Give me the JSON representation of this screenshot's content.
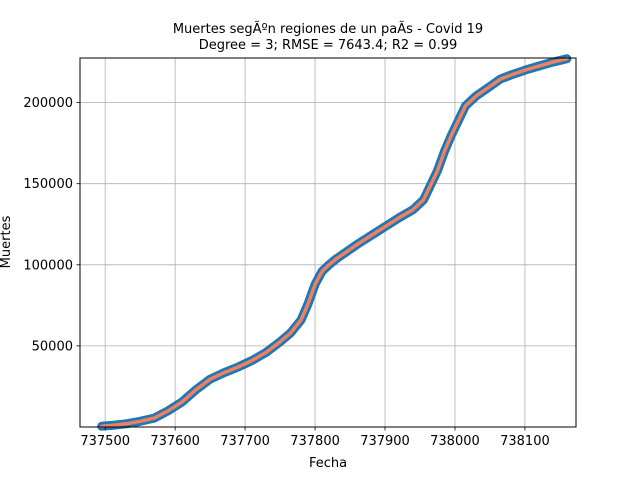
{
  "chart_data": {
    "type": "line",
    "title_line1": "Muertes segÃºn regiones de un paÃ­s - Covid 19",
    "title_line2": "Degree = 3; RMSE = 7643.4; R2 = 0.99",
    "xlabel": "Fecha",
    "ylabel": "Muertes",
    "xlim": [
      737464,
      738173
    ],
    "ylim": [
      0,
      227500
    ],
    "xticks": [
      737500,
      737600,
      737700,
      737800,
      737900,
      738000,
      738100
    ],
    "xtick_labels": [
      "737500",
      "737600",
      "737700",
      "737800",
      "737900",
      "738000",
      "738100"
    ],
    "yticks": [
      50000,
      100000,
      150000,
      200000
    ],
    "ytick_labels": [
      "50000",
      "100000",
      "150000",
      "200000"
    ],
    "grid": true,
    "legend": "none",
    "series": [
      {
        "color": "#1f77b4",
        "style": "thick-line",
        "x": [
          737495,
          737510,
          737530,
          737550,
          737570,
          737590,
          737610,
          737630,
          737650,
          737670,
          737690,
          737710,
          737730,
          737750,
          737765,
          737780,
          737790,
          737800,
          737810,
          737820,
          737830,
          737845,
          737860,
          737880,
          737900,
          737920,
          737940,
          737955,
          737965,
          737975,
          737985,
          737995,
          738005,
          738015,
          738030,
          738050,
          738065,
          738080,
          738100,
          738120,
          738140,
          738160
        ],
        "y": [
          500,
          1000,
          2000,
          3500,
          5500,
          10000,
          15500,
          23000,
          29500,
          33500,
          37000,
          41000,
          46000,
          52500,
          58000,
          66000,
          76000,
          88000,
          96000,
          100000,
          103500,
          108000,
          112500,
          118000,
          123500,
          129000,
          134000,
          140000,
          149000,
          158000,
          170000,
          180000,
          189000,
          198000,
          204000,
          210000,
          214500,
          217000,
          220000,
          222500,
          225000,
          227000
        ]
      },
      {
        "color": "#f08060",
        "style": "thin-line",
        "x": [
          737495,
          737510,
          737530,
          737550,
          737570,
          737590,
          737610,
          737630,
          737650,
          737670,
          737690,
          737710,
          737730,
          737750,
          737765,
          737780,
          737790,
          737800,
          737810,
          737820,
          737830,
          737845,
          737860,
          737880,
          737900,
          737920,
          737940,
          737955,
          737965,
          737975,
          737985,
          737995,
          738005,
          738015,
          738030,
          738050,
          738065,
          738080,
          738100,
          738120,
          738140,
          738160
        ],
        "y": [
          500,
          1000,
          2000,
          3500,
          5500,
          10000,
          15500,
          23000,
          29500,
          33500,
          37000,
          41000,
          46000,
          52500,
          58000,
          66000,
          76000,
          88000,
          96000,
          100000,
          103500,
          108000,
          112500,
          118000,
          123500,
          129000,
          134000,
          140000,
          149000,
          158000,
          170000,
          180000,
          189000,
          198000,
          204000,
          210000,
          214500,
          217000,
          220000,
          222500,
          225000,
          227000
        ]
      }
    ]
  }
}
